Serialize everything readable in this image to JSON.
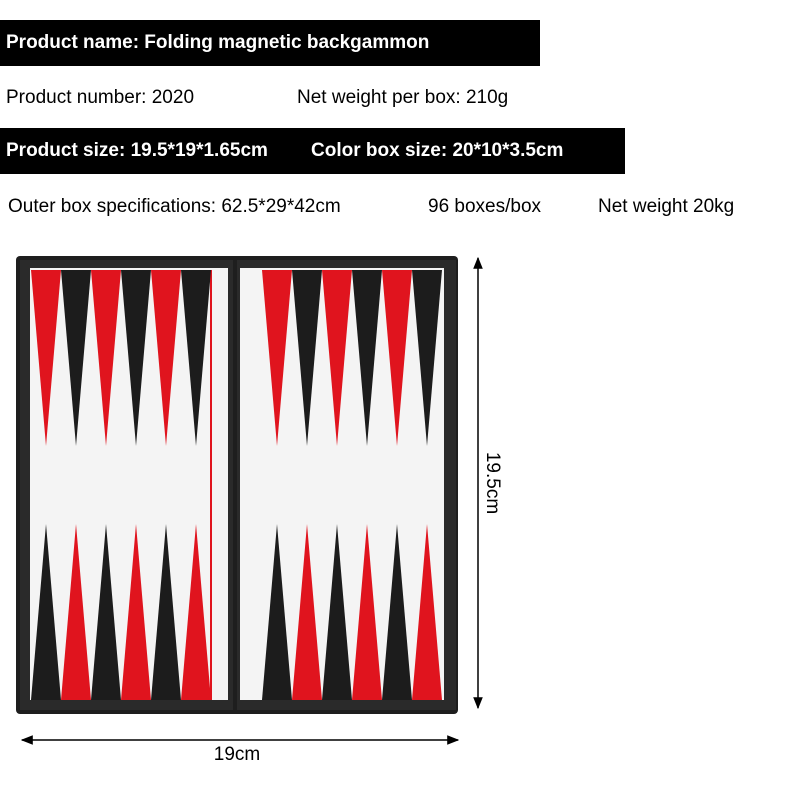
{
  "specs": {
    "product_name": "Product name: Folding magnetic backgammon",
    "product_number": "Product number: 2020",
    "net_weight_per_box": "Net weight per box: 210g",
    "product_size": "Product size: 19.5*19*1.65cm",
    "color_box_size": "Color box size: 20*10*3.5cm",
    "outer_box": "Outer box specifications: 62.5*29*42cm",
    "boxes_per_box": "96 boxes/box",
    "net_weight": "Net weight 20kg"
  },
  "dimensions": {
    "height": "19.5cm",
    "width": "19cm"
  }
}
